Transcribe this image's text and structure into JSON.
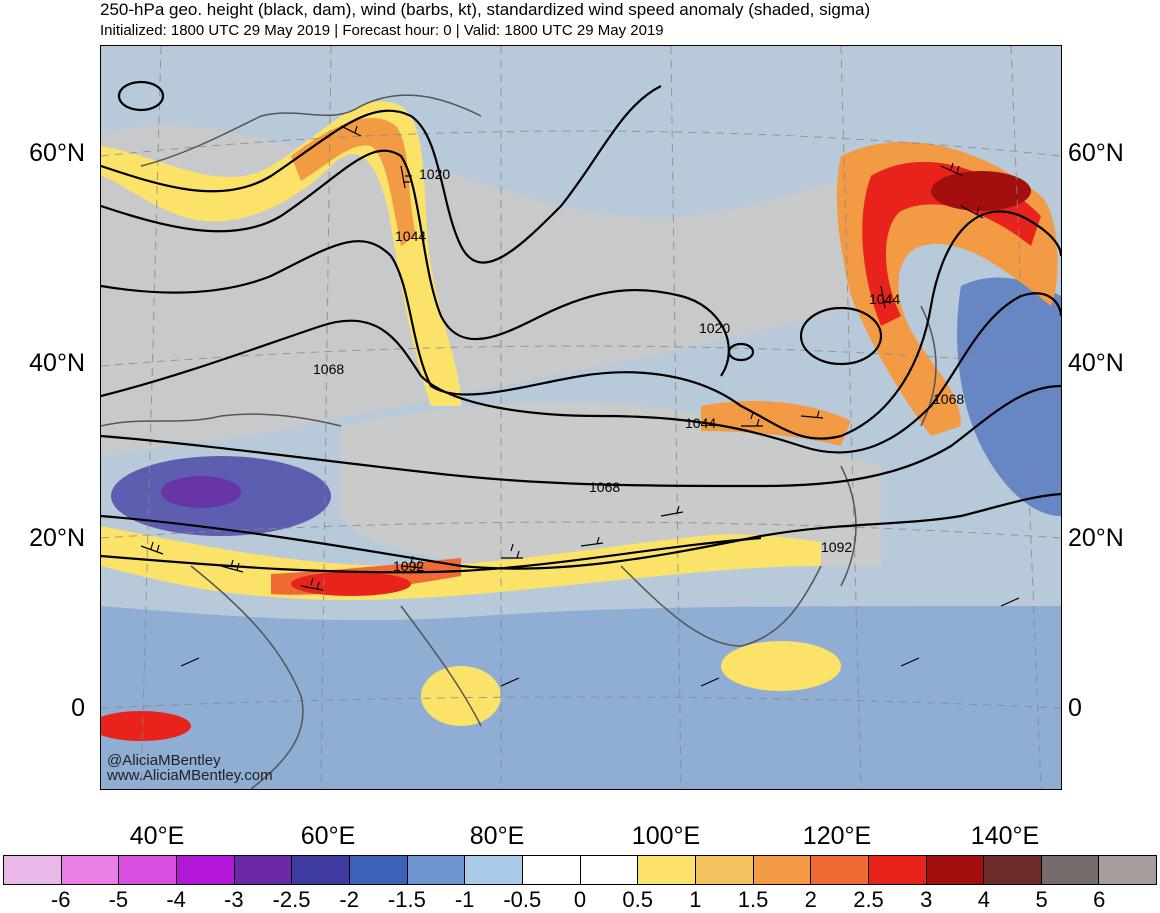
{
  "header": {
    "title": "250-hPa geo. height (black, dam), wind (barbs, kt), standardized wind speed anomaly (shaded, sigma)",
    "subtitle": "Initialized: 1800 UTC 29 May 2019 | Forecast hour: 0 | Valid: 1800 UTC 29 May 2019"
  },
  "map": {
    "latitude_labels": [
      "60°N",
      "40°N",
      "20°N",
      "0"
    ],
    "longitude_labels": [
      "40°E",
      "60°E",
      "80°E",
      "100°E",
      "120°E",
      "140°E"
    ],
    "contour_labels": [
      "1020",
      "1044",
      "1068",
      "1020",
      "1044",
      "1044",
      "1068",
      "1068",
      "1092",
      "1092"
    ],
    "colors": {
      "background": "#c9c9c9",
      "contour": "#000000",
      "coastline": "#555555"
    }
  },
  "credits": {
    "handle": "@AliciaMBentley",
    "website": "www.AliciaMBentley.com"
  },
  "colorbar": {
    "labels": [
      "-6",
      "-5",
      "-4",
      "-3",
      "-2.5",
      "-2",
      "-1.5",
      "-1",
      "-0.5",
      "0",
      "0.5",
      "1",
      "1.5",
      "2",
      "2.5",
      "3",
      "4",
      "5",
      "6"
    ],
    "colors": [
      "#e9b8e9",
      "#e77fe7",
      "#d84fdf",
      "#b316d6",
      "#6b2aa5",
      "#3f3aa0",
      "#3a62b8",
      "#6f95cf",
      "#a9cae8",
      "#ffffff",
      "#ffffff",
      "#fbe36a",
      "#f4c25c",
      "#f39a45",
      "#f06a36",
      "#e8231c",
      "#a30e0e",
      "#6e2a2a",
      "#766b6b",
      "#a79d9d"
    ]
  }
}
